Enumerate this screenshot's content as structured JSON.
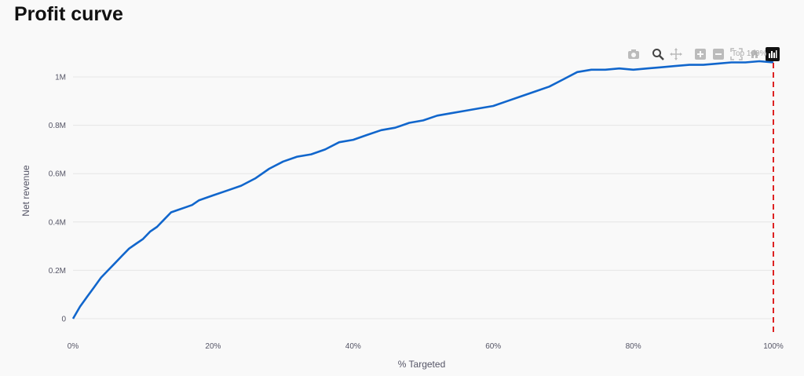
{
  "page": {
    "title": "Profit curve"
  },
  "modebar": {
    "buttons": [
      {
        "name": "camera-icon"
      },
      {
        "name": "zoom-icon"
      },
      {
        "name": "pan-icon"
      },
      {
        "name": "zoom-in-icon"
      },
      {
        "name": "zoom-out-icon"
      },
      {
        "name": "autoscale-icon"
      },
      {
        "name": "reset-axes-icon"
      },
      {
        "name": "plotly-logo-icon"
      }
    ],
    "overlay_text": "Top 100%"
  },
  "chart_data": {
    "type": "line",
    "title": "",
    "xlabel": "% Targeted",
    "ylabel": "Net revenue",
    "xlim": [
      0,
      1
    ],
    "ylim": [
      0,
      1.1
    ],
    "x_ticks": [
      {
        "value": 0,
        "label": "0%"
      },
      {
        "value": 0.2,
        "label": "20%"
      },
      {
        "value": 0.4,
        "label": "40%"
      },
      {
        "value": 0.6,
        "label": "60%"
      },
      {
        "value": 0.8,
        "label": "80%"
      },
      {
        "value": 1.0,
        "label": "100%"
      }
    ],
    "y_ticks": [
      {
        "value": 0,
        "label": "0"
      },
      {
        "value": 0.2,
        "label": "0.2M"
      },
      {
        "value": 0.4,
        "label": "0.4M"
      },
      {
        "value": 0.6,
        "label": "0.6M"
      },
      {
        "value": 0.8,
        "label": "0.8M"
      },
      {
        "value": 1.0,
        "label": "1M"
      }
    ],
    "grid": true,
    "series": [
      {
        "color": "#1166cc",
        "x": [
          0,
          0.01,
          0.02,
          0.03,
          0.04,
          0.05,
          0.06,
          0.07,
          0.08,
          0.09,
          0.1,
          0.11,
          0.12,
          0.13,
          0.14,
          0.15,
          0.16,
          0.17,
          0.18,
          0.19,
          0.2,
          0.22,
          0.24,
          0.26,
          0.28,
          0.3,
          0.32,
          0.34,
          0.36,
          0.38,
          0.4,
          0.42,
          0.44,
          0.46,
          0.48,
          0.5,
          0.52,
          0.54,
          0.56,
          0.58,
          0.6,
          0.62,
          0.64,
          0.66,
          0.68,
          0.7,
          0.72,
          0.74,
          0.76,
          0.78,
          0.8,
          0.82,
          0.84,
          0.86,
          0.88,
          0.9,
          0.92,
          0.94,
          0.96,
          0.98,
          1.0
        ],
        "y": [
          0,
          0.05,
          0.09,
          0.13,
          0.17,
          0.2,
          0.23,
          0.26,
          0.29,
          0.31,
          0.33,
          0.36,
          0.38,
          0.41,
          0.44,
          0.45,
          0.46,
          0.47,
          0.49,
          0.5,
          0.51,
          0.53,
          0.55,
          0.58,
          0.62,
          0.65,
          0.67,
          0.68,
          0.7,
          0.73,
          0.74,
          0.76,
          0.78,
          0.79,
          0.81,
          0.82,
          0.84,
          0.85,
          0.86,
          0.87,
          0.88,
          0.9,
          0.92,
          0.94,
          0.96,
          0.99,
          1.02,
          1.03,
          1.03,
          1.035,
          1.03,
          1.035,
          1.04,
          1.045,
          1.05,
          1.05,
          1.055,
          1.06,
          1.06,
          1.065,
          1.06
        ]
      }
    ],
    "marker_line": {
      "x": 1.0,
      "color": "#dd2222",
      "style": "dashed"
    }
  }
}
